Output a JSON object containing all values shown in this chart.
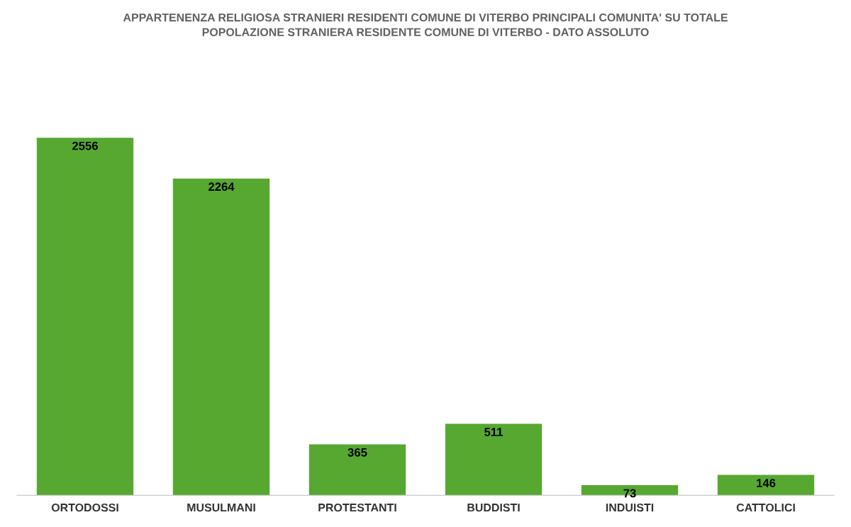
{
  "chart_data": {
    "type": "bar",
    "title": "APPARTENENZA RELIGIOSA STRANIERI RESIDENTI COMUNE DI VITERBO PRINCIPALI COMUNITA' SU TOTALE\nPOPOLAZIONE STRANIERA RESIDENTE COMUNE DI VITERBO - DATO ASSOLUTO",
    "categories": [
      "ORTODOSSI",
      "MUSULMANI",
      "PROTESTANTI",
      "BUDDISTI",
      "INDUISTI",
      "CATTOLICI"
    ],
    "values": [
      2556,
      2264,
      365,
      511,
      73,
      146
    ],
    "color": "#56a831",
    "data_labels": true,
    "grid": false,
    "legend": false
  }
}
